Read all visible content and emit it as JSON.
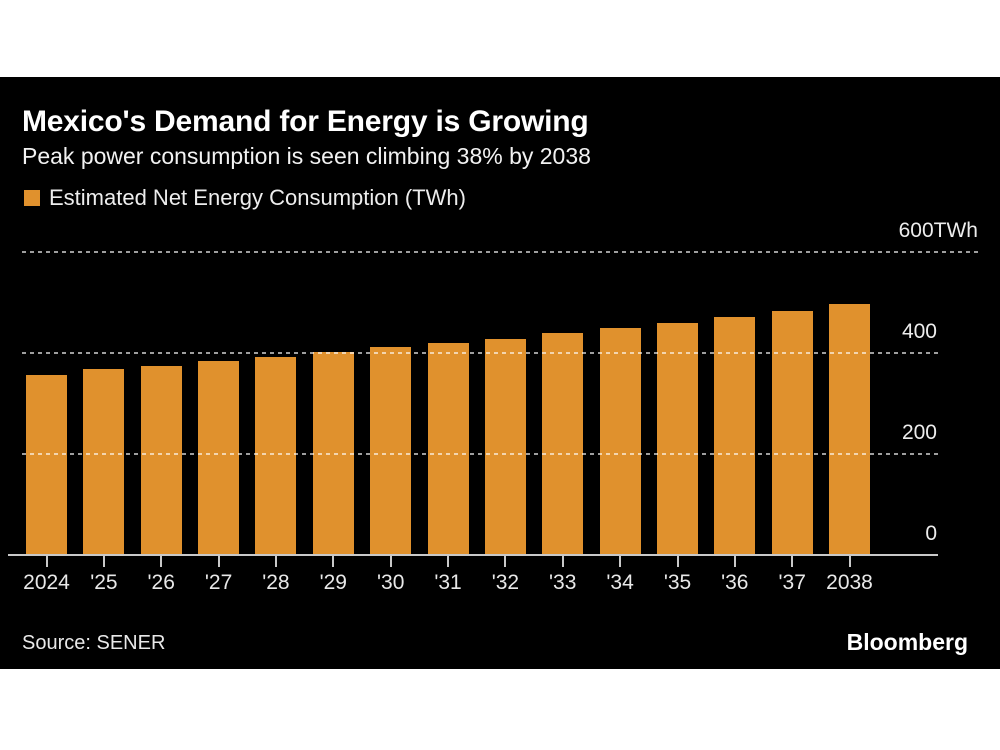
{
  "header": {
    "title": "Mexico's Demand for Energy is Growing",
    "subtitle": "Peak power consumption is seen climbing 38% by 2038"
  },
  "legend": {
    "label": "Estimated Net Energy Consumption (TWh)",
    "swatch_color": "#E0912D"
  },
  "chart_data": {
    "type": "bar",
    "title": "Mexico's Demand for Energy is Growing",
    "subtitle": "Peak power consumption is seen climbing 38% by 2038",
    "series_name": "Estimated Net Energy Consumption (TWh)",
    "unit": "TWh",
    "categories": [
      "2024",
      "'25",
      "'26",
      "'27",
      "'28",
      "'29",
      "'30",
      "'31",
      "'32",
      "'33",
      "'34",
      "'35",
      "'36",
      "'37",
      "2038"
    ],
    "values": [
      356,
      368,
      374,
      384,
      392,
      402,
      412,
      420,
      428,
      440,
      450,
      459,
      471,
      483,
      497
    ],
    "bar_color": "#E0912D",
    "background_color": "#000000",
    "ylim": [
      0,
      600
    ],
    "yticks": [
      {
        "value": 600,
        "label": "600TWh"
      },
      {
        "value": 400,
        "label": "400"
      },
      {
        "value": 200,
        "label": "200"
      },
      {
        "value": 0,
        "label": "0"
      }
    ],
    "grid": "horizontal dashed, drawn over bars",
    "legend_position": "top-left",
    "y_axis_side": "right"
  },
  "footer": {
    "source": "Source: SENER",
    "brand": "Bloomberg"
  }
}
